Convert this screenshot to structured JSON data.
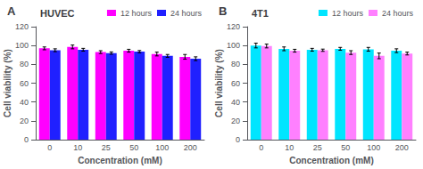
{
  "chart_data": [
    {
      "type": "bar",
      "annotation": "A",
      "title": "HUVEC",
      "xlabel": "Concentration (mM)",
      "ylabel": "Cell viability (%)",
      "categories": [
        "0",
        "10",
        "25",
        "50",
        "100",
        "200"
      ],
      "series": [
        {
          "name": "12 hours",
          "color": "#FF00FF",
          "values": [
            97,
            98.5,
            93,
            94.5,
            91,
            88
          ],
          "errors": [
            1.5,
            2.0,
            1.5,
            1.5,
            2.0,
            2.5
          ]
        },
        {
          "name": "24 hours",
          "color": "#2020FF",
          "values": [
            95,
            95.5,
            92,
            93.5,
            89,
            86
          ],
          "errors": [
            1.5,
            1.5,
            1.2,
            1.2,
            1.5,
            2.0
          ]
        }
      ],
      "ylim": [
        0,
        120
      ],
      "yticks": [
        0,
        20,
        40,
        60,
        80,
        100,
        120
      ],
      "legend": "upper right",
      "grid": false
    },
    {
      "type": "bar",
      "annotation": "B",
      "title": "4T1",
      "xlabel": "Concentration (mM)",
      "ylabel": "Cell viability (%)",
      "categories": [
        "0",
        "10",
        "25",
        "50",
        "100",
        "200"
      ],
      "series": [
        {
          "name": "12 hours",
          "color": "#00E5FF",
          "values": [
            100,
            96.5,
            95.5,
            96.5,
            96,
            94.5
          ],
          "errors": [
            2.5,
            2.0,
            1.5,
            1.5,
            2.0,
            2.0
          ]
        },
        {
          "name": "24 hours",
          "color": "#FF80FF",
          "values": [
            99.5,
            94.5,
            95,
            92.5,
            89,
            91.5
          ],
          "errors": [
            2.0,
            1.5,
            1.2,
            2.0,
            3.0,
            1.5
          ]
        }
      ],
      "ylim": [
        0,
        120
      ],
      "yticks": [
        0,
        20,
        40,
        60,
        80,
        100,
        120
      ],
      "legend": "upper right",
      "grid": false
    }
  ]
}
